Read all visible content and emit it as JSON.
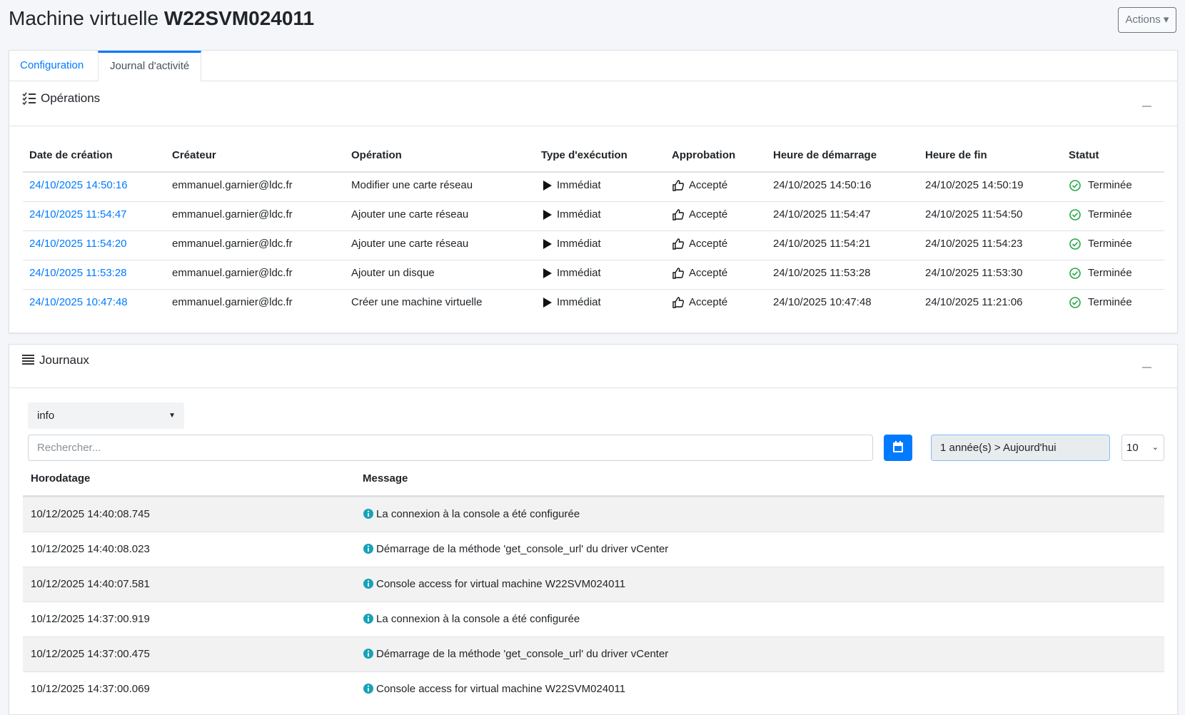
{
  "header": {
    "title_prefix": "Machine virtuelle",
    "title_name": "W22SVM024011",
    "actions": "Actions"
  },
  "tabs": [
    "Configuration",
    "Journal d'activité"
  ],
  "operations": {
    "title": "Opérations",
    "columns": [
      "Date de création",
      "Créateur",
      "Opération",
      "Type d'exécution",
      "Approbation",
      "Heure de démarrage",
      "Heure de fin",
      "Statut"
    ],
    "rows": [
      [
        "24/10/2025 14:50:16",
        "emmanuel.garnier@ldc.fr",
        "Modifier une carte réseau",
        "Immédiat",
        "Accepté",
        "24/10/2025 14:50:16",
        "24/10/2025 14:50:19",
        "Terminée"
      ],
      [
        "24/10/2025 11:54:47",
        "emmanuel.garnier@ldc.fr",
        "Ajouter une carte réseau",
        "Immédiat",
        "Accepté",
        "24/10/2025 11:54:47",
        "24/10/2025 11:54:50",
        "Terminée"
      ],
      [
        "24/10/2025 11:54:20",
        "emmanuel.garnier@ldc.fr",
        "Ajouter une carte réseau",
        "Immédiat",
        "Accepté",
        "24/10/2025 11:54:21",
        "24/10/2025 11:54:23",
        "Terminée"
      ],
      [
        "24/10/2025 11:53:28",
        "emmanuel.garnier@ldc.fr",
        "Ajouter un disque",
        "Immédiat",
        "Accepté",
        "24/10/2025 11:53:28",
        "24/10/2025 11:53:30",
        "Terminée"
      ],
      [
        "24/10/2025 10:47:48",
        "emmanuel.garnier@ldc.fr",
        "Créer une machine virtuelle",
        "Immédiat",
        "Accepté",
        "24/10/2025 10:47:48",
        "24/10/2025 11:21:06",
        "Terminée"
      ]
    ]
  },
  "journaux": {
    "title": "Journaux",
    "level": "info",
    "search_placeholder": "Rechercher...",
    "date_range": "1 année(s) > Aujourd'hui",
    "page_size": "10",
    "columns": [
      "Horodatage",
      "Message"
    ],
    "rows": [
      [
        "10/12/2025 14:40:08.745",
        "La connexion à la console a été configurée"
      ],
      [
        "10/12/2025 14:40:08.023",
        "Démarrage de la méthode 'get_console_url' du driver vCenter"
      ],
      [
        "10/12/2025 14:40:07.581",
        "Console access for virtual machine W22SVM024011"
      ],
      [
        "10/12/2025 14:37:00.919",
        "La connexion à la console a été configurée"
      ],
      [
        "10/12/2025 14:37:00.475",
        "Démarrage de la méthode 'get_console_url' du driver vCenter"
      ],
      [
        "10/12/2025 14:37:00.069",
        "Console access for virtual machine W22SVM024011"
      ]
    ]
  }
}
